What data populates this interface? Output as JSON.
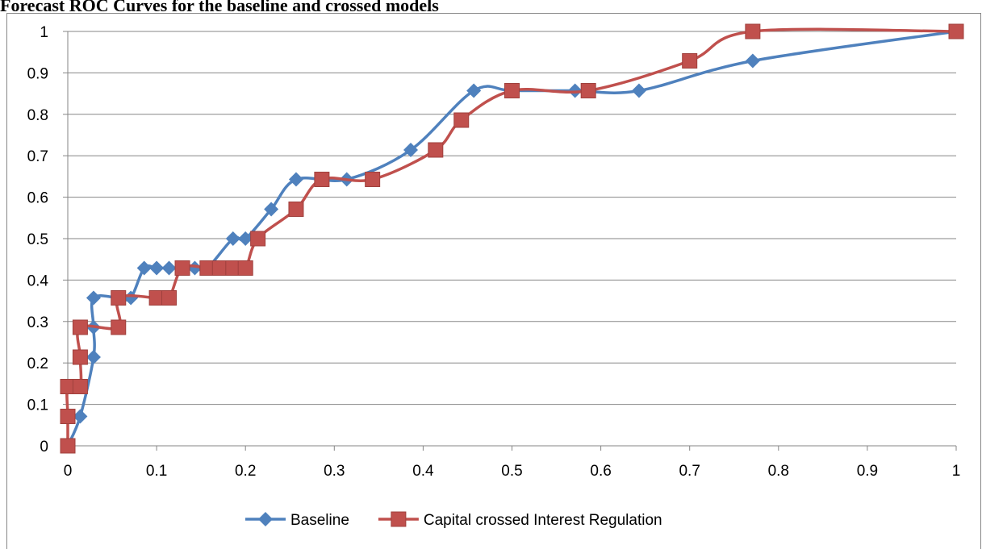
{
  "chart_data": {
    "type": "line",
    "smooth": true,
    "title": "Forecast ROC Curves for the baseline and crossed models",
    "xlim": [
      0,
      1
    ],
    "xticks": [
      0,
      0.1,
      0.2,
      0.3,
      0.4,
      0.5,
      0.6,
      0.7,
      0.8,
      0.9,
      1
    ],
    "ylim": [
      0,
      1
    ],
    "yticks": [
      0,
      0.1,
      0.2,
      0.3,
      0.4,
      0.5,
      0.6,
      0.7,
      0.8,
      0.9,
      1
    ],
    "grid": true,
    "legend": "bottom",
    "series": [
      {
        "name": "Baseline",
        "color": "#4f81bd",
        "marker": "diamond",
        "x": [
          0,
          0.014,
          0.029,
          0.029,
          0.029,
          0.057,
          0.071,
          0.086,
          0.1,
          0.114,
          0.129,
          0.143,
          0.157,
          0.186,
          0.2,
          0.229,
          0.257,
          0.314,
          0.386,
          0.457,
          0.5,
          0.571,
          0.643,
          0.771,
          1
        ],
        "values": [
          0,
          0.071,
          0.214,
          0.286,
          0.357,
          0.357,
          0.357,
          0.429,
          0.429,
          0.429,
          0.429,
          0.429,
          0.429,
          0.5,
          0.5,
          0.571,
          0.643,
          0.643,
          0.714,
          0.857,
          0.857,
          0.857,
          0.857,
          0.929,
          1
        ]
      },
      {
        "name": "Capital crossed Interest Regulation",
        "color": "#c0504d",
        "marker": "square",
        "x": [
          0,
          0,
          0,
          0.014,
          0.014,
          0.014,
          0.057,
          0.057,
          0.1,
          0.114,
          0.129,
          0.157,
          0.171,
          0.186,
          0.2,
          0.214,
          0.257,
          0.286,
          0.343,
          0.414,
          0.443,
          0.5,
          0.586,
          0.7,
          0.771,
          1
        ],
        "values": [
          0,
          0.071,
          0.143,
          0.143,
          0.214,
          0.286,
          0.286,
          0.357,
          0.357,
          0.357,
          0.429,
          0.429,
          0.429,
          0.429,
          0.429,
          0.5,
          0.571,
          0.643,
          0.643,
          0.714,
          0.786,
          0.857,
          0.857,
          0.929,
          1,
          1
        ]
      }
    ]
  }
}
